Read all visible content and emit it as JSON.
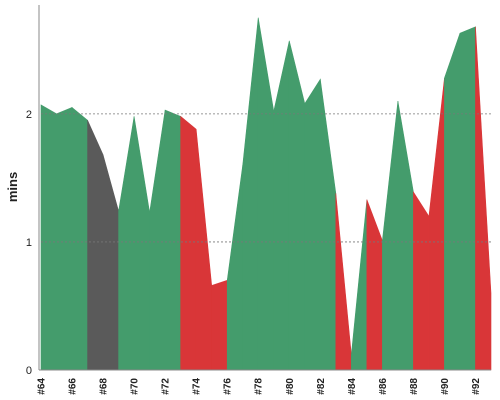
{
  "chart_data": {
    "type": "area",
    "ylabel": "mins",
    "ylim": [
      0,
      2.85
    ],
    "yticks": [
      0,
      1,
      2
    ],
    "ygrid": "dotted",
    "x": [
      64,
      65,
      66,
      67,
      68,
      69,
      70,
      71,
      72,
      73,
      74,
      75,
      76,
      77,
      78,
      79,
      80,
      81,
      82,
      83,
      84,
      85,
      86,
      87,
      88,
      89,
      90,
      91,
      92,
      93
    ],
    "xticks": [
      "#64",
      "#66",
      "#68",
      "#70",
      "#72",
      "#74",
      "#76",
      "#78",
      "#80",
      "#82",
      "#84",
      "#86",
      "#88",
      "#90",
      "#92"
    ],
    "values": [
      2.07,
      2.0,
      2.05,
      1.95,
      1.68,
      1.24,
      1.98,
      1.23,
      2.03,
      1.98,
      1.88,
      0.66,
      0.7,
      1.6,
      2.75,
      2.02,
      2.57,
      2.08,
      2.27,
      1.38,
      0.12,
      1.33,
      1.01,
      2.1,
      1.39,
      1.2,
      2.28,
      2.63,
      2.68,
      0.6
    ],
    "segment_status": [
      "good",
      "good",
      "good",
      "neutral",
      "neutral",
      "good",
      "good",
      "good",
      "good",
      "bad",
      "bad",
      "bad",
      "good",
      "good",
      "good",
      "good",
      "good",
      "good",
      "good",
      "bad",
      "good",
      "bad",
      "good",
      "good",
      "bad",
      "bad",
      "good",
      "good",
      "bad"
    ],
    "colors": {
      "good": "#449c6c",
      "bad": "#d93638",
      "neutral": "#5a5a5a",
      "axis": "#888888",
      "grid": "#777777"
    }
  }
}
